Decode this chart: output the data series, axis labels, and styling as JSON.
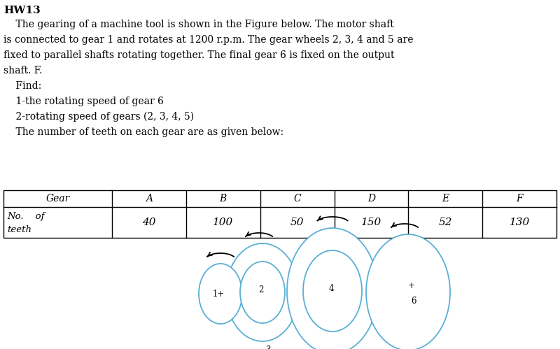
{
  "title": "HW13",
  "lines": [
    "    The gearing of a machine tool is shown in the Figure below. The motor shaft",
    "is connected to gear 1 and rotates at 1200 r.p.m. The gear wheels 2, 3, 4 and 5 are",
    "fixed to parallel shafts rotating together. The final gear 6 is fixed on the output",
    "shaft. F.",
    "    Find:",
    "    1-the rotating speed of gear 6",
    "    2-rotating speed of gears (2, 3, 4, 5)",
    "    The number of teeth on each gear are as given below:"
  ],
  "table_headers": [
    "Gear",
    "A",
    "B",
    "C",
    "D",
    "E",
    "F"
  ],
  "table_values": [
    "40",
    "100",
    "50",
    "150",
    "52",
    "130"
  ],
  "gear_color": "#5aafd4",
  "bg_color": "#ffffff",
  "font_size_title": 11,
  "font_size_body": 10,
  "font_size_table": 10,
  "font_size_gear": 8.5
}
